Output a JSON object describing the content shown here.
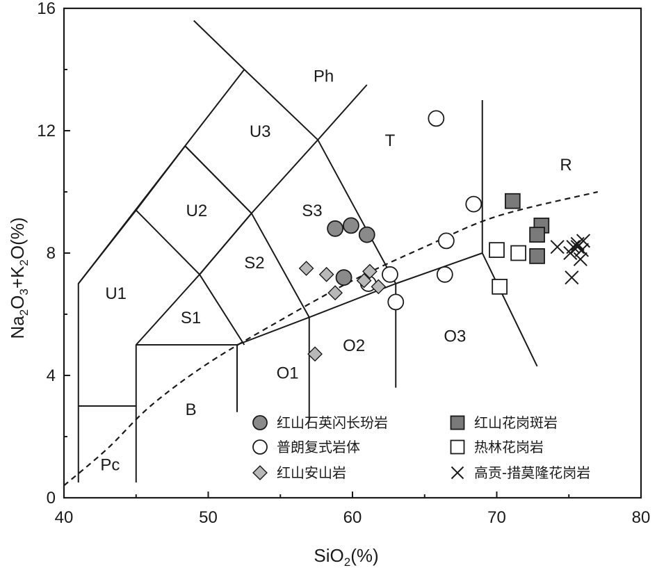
{
  "chart_data": {
    "type": "scatter",
    "xlabel": "SiO",
    "xlabel_sub": "2",
    "xlabel_tail": "(%)",
    "ylabel_parts": [
      {
        "t": "Na",
        "sub": false
      },
      {
        "t": "2",
        "sub": true
      },
      {
        "t": "O",
        "sub": false
      },
      {
        "t": "3",
        "sub": true
      },
      {
        "t": "+K",
        "sub": false
      },
      {
        "t": "2",
        "sub": true
      },
      {
        "t": "O(%)",
        "sub": false
      }
    ],
    "xlim": [
      40,
      80
    ],
    "ylim": [
      0,
      16
    ],
    "x_ticks": [
      40,
      50,
      60,
      70,
      80
    ],
    "y_ticks": [
      0,
      4,
      8,
      12,
      16
    ],
    "x_tick_labels": [
      "40",
      "50",
      "60",
      "70",
      "80"
    ],
    "y_tick_labels": [
      "0",
      "4",
      "8",
      "12",
      "16"
    ],
    "legend_position": "bottom-right",
    "boundaries": [
      [
        [
          41,
          0.5
        ],
        [
          41,
          7
        ],
        [
          52.5,
          14
        ],
        [
          57.6,
          11.7
        ],
        [
          63,
          7
        ]
      ],
      [
        [
          41,
          3
        ],
        [
          45,
          3
        ]
      ],
      [
        [
          45,
          0.5
        ],
        [
          45,
          5
        ],
        [
          49.4,
          7.3
        ],
        [
          53,
          9.3
        ],
        [
          57.6,
          11.7
        ]
      ],
      [
        [
          45,
          5
        ],
        [
          52,
          5
        ]
      ],
      [
        [
          52,
          5
        ],
        [
          57,
          5.9
        ],
        [
          63,
          7
        ],
        [
          69,
          8
        ]
      ],
      [
        [
          52,
          5
        ],
        [
          52,
          2.8
        ]
      ],
      [
        [
          57,
          5.9
        ],
        [
          57,
          2.5
        ]
      ],
      [
        [
          63,
          7
        ],
        [
          63,
          3.6
        ]
      ],
      [
        [
          69,
          13
        ],
        [
          69,
          8
        ],
        [
          72.8,
          4.3
        ]
      ],
      [
        [
          41,
          7
        ],
        [
          45,
          9.4
        ],
        [
          49.4,
          7.3
        ],
        [
          52.5,
          5
        ]
      ],
      [
        [
          45,
          9.4
        ],
        [
          48.4,
          11.5
        ],
        [
          53,
          9.3
        ],
        [
          57,
          5.9
        ]
      ],
      [
        [
          48.4,
          11.5
        ],
        [
          53,
          9.3
        ]
      ],
      [
        [
          49.4,
          7.3
        ],
        [
          53,
          9.3
        ]
      ],
      [
        [
          57.6,
          11.7
        ],
        [
          61,
          13.5
        ]
      ],
      [
        [
          52.5,
          14
        ],
        [
          49,
          15.6
        ]
      ]
    ],
    "trend_line": [
      [
        40,
        0.4
      ],
      [
        43,
        1.6
      ],
      [
        46,
        3.0
      ],
      [
        50,
        4.4
      ],
      [
        55,
        5.8
      ],
      [
        60,
        7.1
      ],
      [
        65,
        8.2
      ],
      [
        70,
        9.2
      ],
      [
        77,
        10
      ]
    ],
    "regions": [
      {
        "label": "Pc",
        "x": 43.2,
        "y": 0.9
      },
      {
        "label": "B",
        "x": 48.8,
        "y": 2.7
      },
      {
        "label": "U1",
        "x": 43.6,
        "y": 6.5
      },
      {
        "label": "S1",
        "x": 48.8,
        "y": 5.7
      },
      {
        "label": "U2",
        "x": 49.2,
        "y": 9.2
      },
      {
        "label": "S2",
        "x": 53.2,
        "y": 7.5
      },
      {
        "label": "U3",
        "x": 53.6,
        "y": 11.8
      },
      {
        "label": "S3",
        "x": 57.2,
        "y": 9.2
      },
      {
        "label": "Ph",
        "x": 58.0,
        "y": 13.6
      },
      {
        "label": "T",
        "x": 62.6,
        "y": 11.5
      },
      {
        "label": "O1",
        "x": 55.5,
        "y": 3.9
      },
      {
        "label": "O2",
        "x": 60.1,
        "y": 4.8
      },
      {
        "label": "O3",
        "x": 67.1,
        "y": 5.1
      },
      {
        "label": "R",
        "x": 74.8,
        "y": 10.7
      }
    ],
    "series": [
      {
        "name": "红山石英闪长玢岩",
        "marker": "circle",
        "fill": "#8a8a8a",
        "x": [
          58.8,
          59.9,
          61.0,
          59.4
        ],
        "y": [
          8.8,
          8.9,
          8.6,
          7.2
        ]
      },
      {
        "name": "普朗复式岩体",
        "marker": "circle",
        "fill": "#ffffff",
        "x": [
          65.8,
          68.4,
          66.5,
          66.4,
          62.6,
          61.1,
          63.0
        ],
        "y": [
          12.4,
          9.6,
          8.4,
          7.3,
          7.3,
          7.0,
          6.4
        ]
      },
      {
        "name": "红山安山岩",
        "marker": "diamond",
        "fill": "#b8b8b8",
        "x": [
          56.8,
          58.2,
          58.8,
          61.2,
          60.8,
          61.8,
          57.4
        ],
        "y": [
          7.5,
          7.3,
          6.7,
          7.4,
          7.1,
          6.9,
          4.7
        ]
      },
      {
        "name": "红山花岗斑岩",
        "marker": "square",
        "fill": "#7a7a7a",
        "x": [
          71.1,
          73.1,
          72.8,
          72.8
        ],
        "y": [
          9.7,
          8.9,
          8.6,
          7.9
        ]
      },
      {
        "name": "热林花岗岩",
        "marker": "square",
        "fill": "#ffffff",
        "x": [
          70.0,
          71.5,
          70.2
        ],
        "y": [
          8.1,
          8.0,
          6.9
        ]
      },
      {
        "name": "高贡-措莫隆花岗岩",
        "marker": "x",
        "fill": "none",
        "x": [
          74.2,
          75.1,
          75.6,
          76.0,
          75.9,
          75.3,
          75.8,
          75.2,
          75.6
        ],
        "y": [
          8.2,
          8.0,
          8.3,
          8.4,
          8.1,
          8.2,
          7.8,
          7.2,
          8.2
        ]
      }
    ]
  }
}
